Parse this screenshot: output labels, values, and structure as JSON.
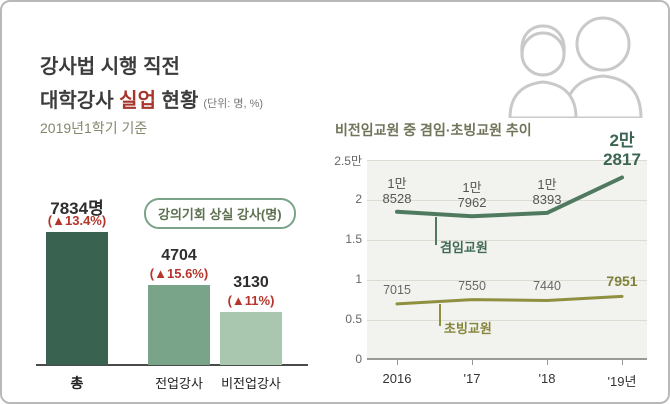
{
  "left": {
    "title_line1": "강사법 시행 직전",
    "title2_a": "대학강사 ",
    "title2_b": "실업",
    "title2_c": " 현황",
    "unit": "(단위: 명, %)",
    "subtitle": "2019년1학기 기준",
    "callout": "강의기회 상실 강사(명)"
  },
  "right": {
    "title": "비전임교원 중 겸임·초빙교원 추이"
  },
  "colors": {
    "accent_red": "#b5352b",
    "bar_total": "#3a6251",
    "bar_fulltime": "#7aa489",
    "bar_parttime": "#a9c7ae",
    "line_gyeomim": "#4f7a60",
    "line_chobing": "#8f903f"
  },
  "chart_data": [
    {
      "type": "bar",
      "title": "강사법 시행 직전 대학강사 실업 현황",
      "subtitle": "2019년1학기 기준",
      "unit": "명, %",
      "note": "강의기회 상실 강사(명)",
      "categories": [
        "총",
        "전업강사",
        "비전업강사"
      ],
      "values": [
        7834,
        4704,
        3130
      ],
      "value_labels": [
        "7834명",
        "4704",
        "3130"
      ],
      "changes": [
        "(▲13.4%)",
        "(▲15.6%)",
        "(▲11%)"
      ],
      "bar_colors": [
        "#3a6251",
        "#7aa489",
        "#a9c7ae"
      ]
    },
    {
      "type": "line",
      "title": "비전임교원 중 겸임·초빙교원 추이",
      "x": [
        "2016",
        "'17",
        "'18",
        "'19년"
      ],
      "yticks": [
        "0",
        "0.5",
        "1",
        "1.5",
        "2",
        "2.5만"
      ],
      "ylim": [
        0,
        25000
      ],
      "grid": true,
      "series": [
        {
          "name": "겸임교원",
          "values": [
            18528,
            17962,
            18393,
            22817
          ],
          "point_labels": [
            [
              "1만",
              "8528"
            ],
            [
              "1만",
              "7962"
            ],
            [
              "1만",
              "8393"
            ],
            [
              "2만",
              "2817"
            ]
          ],
          "color": "#4f7a60"
        },
        {
          "name": "초빙교원",
          "values": [
            7015,
            7550,
            7440,
            7951
          ],
          "point_labels": [
            "7015",
            "7550",
            "7440",
            "7951"
          ],
          "color": "#8f903f"
        }
      ]
    }
  ]
}
